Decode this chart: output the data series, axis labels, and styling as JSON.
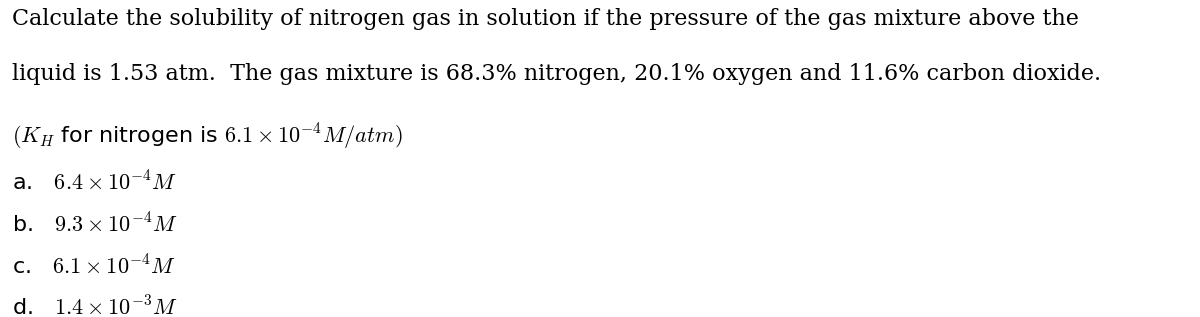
{
  "background_color": "#ffffff",
  "figsize": [
    12.0,
    3.17
  ],
  "dpi": 100,
  "text_color": "#000000",
  "line1": "Calculate the solubility of nitrogen gas in solution if the pressure of the gas mixture above the",
  "line2": "liquid is 1.53 atm.  The gas mixture is 68.3% nitrogen, 20.1% oxygen and 11.6% carbon dioxide.",
  "main_fontsize": 16,
  "answer_fontsize": 16
}
